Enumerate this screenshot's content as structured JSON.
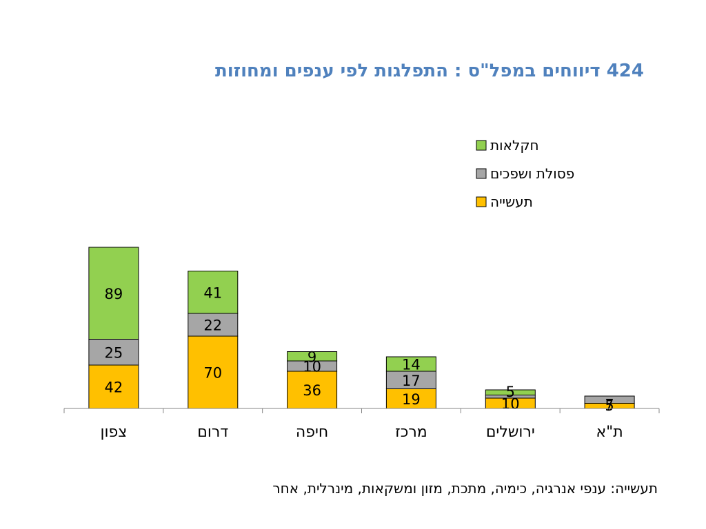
{
  "chart_data": {
    "type": "bar",
    "stacked": true,
    "title": "424  דיווחים במפל\"ס : התפלגות לפי ענפים ומחוזות",
    "categories": [
      "צפון",
      "דרום",
      "חיפה",
      "מרכז",
      "ירושלים",
      "ת\"א"
    ],
    "series": [
      {
        "name": "תעשייה",
        "color": "#ffc000",
        "values": [
          42,
          70,
          36,
          19,
          10,
          5
        ]
      },
      {
        "name": "פסולת ושפכים",
        "color": "#a6a6a6",
        "values": [
          25,
          22,
          10,
          17,
          3,
          7
        ]
      },
      {
        "name": "חקלאות",
        "color": "#92d050",
        "values": [
          89,
          41,
          9,
          14,
          5,
          0
        ]
      }
    ],
    "data_labels": [
      [
        "42",
        "70",
        "36",
        "19",
        "10",
        "5"
      ],
      [
        "25",
        "22",
        "10",
        "17",
        "",
        "7"
      ],
      [
        "89",
        "41",
        "9",
        "14",
        "5",
        ""
      ]
    ],
    "legend_position": "top-right",
    "legend_order": [
      "חקלאות",
      "פסולת ושפכים",
      "תעשייה"
    ],
    "grid": false,
    "ylim": [
      0,
      160
    ]
  },
  "footnote": "תעשייה: ענפי אנרגיה, כימיה, מתכת, מזון ומשקאות, מינרלית, אחר"
}
